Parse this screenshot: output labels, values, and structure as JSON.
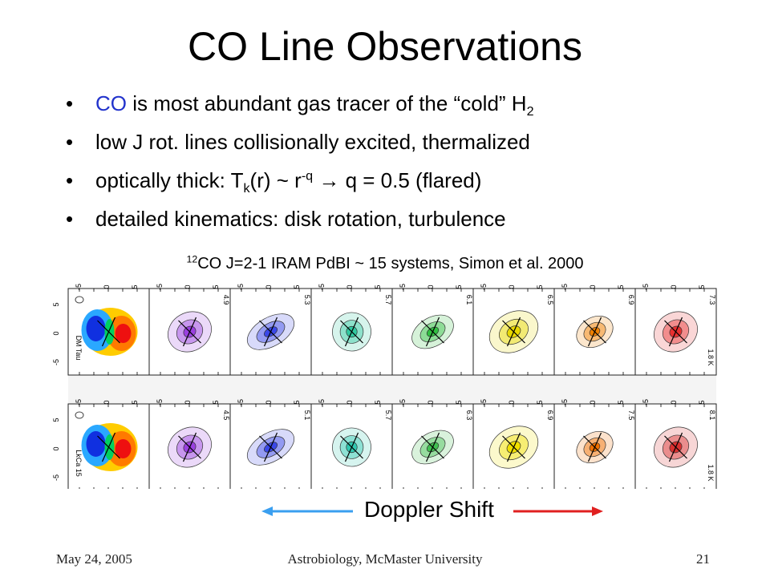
{
  "slide": {
    "title": "CO Line Observations",
    "bullets": {
      "b1": {
        "accent": "CO",
        "text": " is most abundant gas tracer of the “cold” H",
        "sub": "2"
      },
      "b2": {
        "text": "low J rot. lines collisionally excited, thermalized"
      },
      "b3": {
        "pre": "optically thick: T",
        "sub": "k",
        "mid": "(r) ~ r",
        "sup": "-q",
        "arrow": " → ",
        "post": "q = 0.5 (flared)"
      },
      "b4": {
        "text": "detailed kinematics: disk rotation, turbulence"
      }
    },
    "caption": {
      "sup": "12",
      "text": "CO J=2-1 IRAM PdBI ~ 15 systems, Simon et al.  2000"
    },
    "doppler_label": "Doppler Shift",
    "colors": {
      "accent": "#2233cc",
      "arrow_blue": "#3a9ff0",
      "arrow_red": "#e02020"
    },
    "footer": {
      "date": "May 24, 2005",
      "center": "Astrobiology, McMaster University",
      "page": "21"
    }
  },
  "figure": {
    "rows": [
      {
        "source_label": "DM Tau",
        "temp_label": "1.8 K",
        "panels": [
          {
            "velocity": "",
            "color": "#ff4400",
            "kind": "moment"
          },
          {
            "velocity": "4.9",
            "color": "#9a40e0"
          },
          {
            "velocity": "5.3",
            "color": "#3a48e8"
          },
          {
            "velocity": "5.7",
            "color": "#30c8a0"
          },
          {
            "velocity": "6.1",
            "color": "#30c040"
          },
          {
            "velocity": "6.5",
            "color": "#e8d800"
          },
          {
            "velocity": "6.9",
            "color": "#f08000"
          },
          {
            "velocity": "7.3",
            "color": "#e83030"
          }
        ]
      },
      {
        "source_label": "LkCa 15",
        "temp_label": "1.8 K",
        "panels": [
          {
            "velocity": "",
            "color": "#ff4400",
            "kind": "moment"
          },
          {
            "velocity": "4.5",
            "color": "#9a40e0"
          },
          {
            "velocity": "5.1",
            "color": "#3a48e8"
          },
          {
            "velocity": "5.7",
            "color": "#30c8b0"
          },
          {
            "velocity": "6.3",
            "color": "#40c050"
          },
          {
            "velocity": "6.9",
            "color": "#f0e000"
          },
          {
            "velocity": "7.5",
            "color": "#f07000"
          },
          {
            "velocity": "8.1",
            "color": "#d83030"
          }
        ]
      }
    ],
    "tick_labels": {
      "top": [
        "-5",
        "0",
        "5"
      ],
      "left": [
        "5",
        "0",
        "-5"
      ]
    }
  }
}
